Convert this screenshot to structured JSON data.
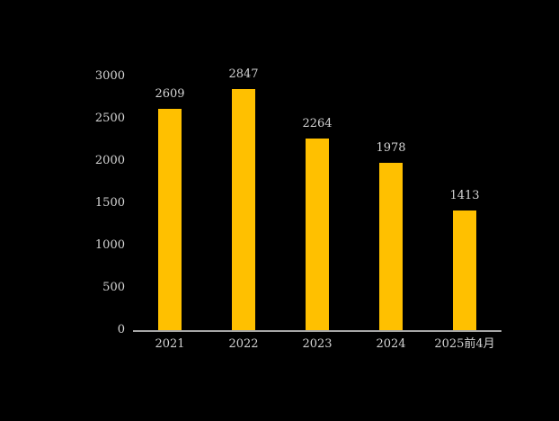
{
  "chart_data": {
    "type": "bar",
    "title": "",
    "xlabel": "",
    "ylabel": "",
    "categories": [
      "2021",
      "2022",
      "2023",
      "2024",
      "2025前4月"
    ],
    "values": [
      2609,
      2847,
      2264,
      1978,
      1413
    ],
    "value_labels": [
      "2609",
      "2847",
      "2264",
      "1978",
      "1413"
    ],
    "ylim": [
      0,
      3000
    ],
    "yticks": [
      0,
      500,
      1000,
      1500,
      2000,
      2500,
      3000
    ],
    "grid": false,
    "legend": null,
    "colors": {
      "background": "#000000",
      "bar": "#FFC000",
      "text": "#D4D4D4",
      "axis_line": "#A6A6A6"
    }
  }
}
